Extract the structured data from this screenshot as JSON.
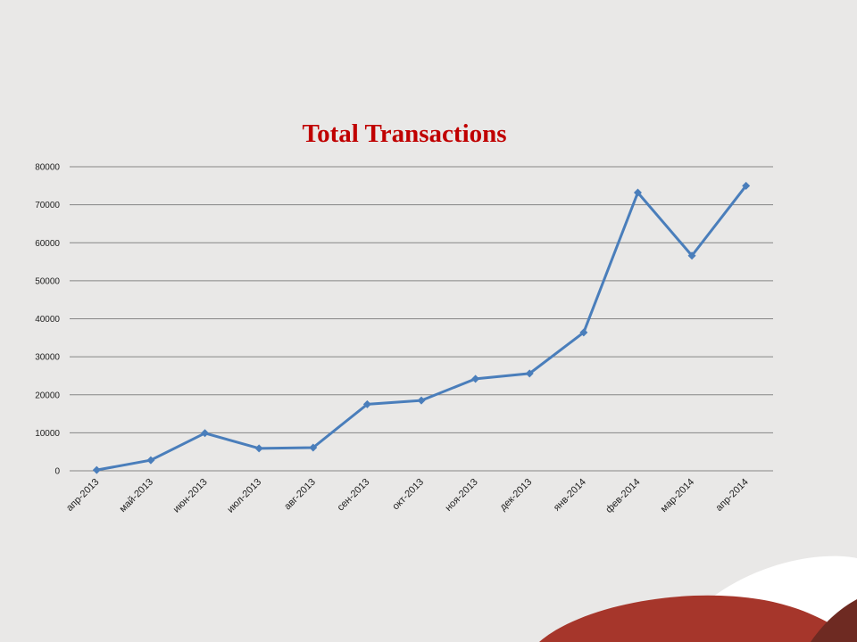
{
  "colors": {
    "background": "#e9e8e7",
    "title": "#c00000",
    "series": "#4a7ebb",
    "grid": "#868686",
    "accent_red": "#a6362b",
    "accent_dark": "#6e2a22",
    "accent_white": "#ffffff"
  },
  "chart_data": {
    "type": "line",
    "title": "Total Transactions",
    "xlabel": "",
    "ylabel": "",
    "ylim": [
      0,
      80000
    ],
    "yticks": [
      0,
      10000,
      20000,
      30000,
      40000,
      50000,
      60000,
      70000,
      80000
    ],
    "grid": true,
    "legend": "none",
    "marker": "diamond",
    "categories": [
      "апр-2013",
      "май-2013",
      "июн-2013",
      "июл-2013",
      "авг-2013",
      "сен-2013",
      "окт-2013",
      "ноя-2013",
      "дек-2013",
      "янв-2014",
      "фев-2014",
      "мар-2014",
      "апр-2014"
    ],
    "series": [
      {
        "values": [
          200,
          2800,
          9900,
          5900,
          6100,
          17500,
          18500,
          24200,
          25600,
          36400,
          73200,
          56600,
          75000
        ]
      }
    ]
  }
}
